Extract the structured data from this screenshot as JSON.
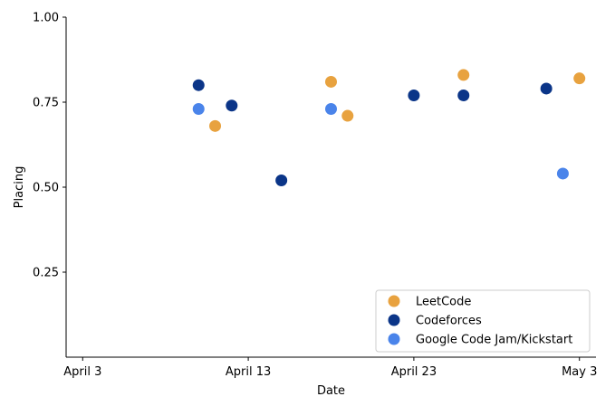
{
  "chart_data": {
    "type": "scatter",
    "xlabel": "Date",
    "ylabel": "Placing",
    "x_type": "date",
    "xlim": [
      "2023-04-02",
      "2023-05-04"
    ],
    "ylim": [
      0.0,
      1.0
    ],
    "x_ticks": [
      {
        "date": "2023-04-03",
        "label": "April 3"
      },
      {
        "date": "2023-04-13",
        "label": "April 13"
      },
      {
        "date": "2023-04-23",
        "label": "April 23"
      },
      {
        "date": "2023-05-03",
        "label": "May 3"
      }
    ],
    "y_ticks": [
      {
        "value": 0.25,
        "label": "0.25"
      },
      {
        "value": 0.5,
        "label": "0.50"
      },
      {
        "value": 0.75,
        "label": "0.75"
      },
      {
        "value": 1.0,
        "label": "1.00"
      }
    ],
    "grid": false,
    "legend_position": "lower-right",
    "series": [
      {
        "name": "LeetCode",
        "color": "#E8A23F",
        "points": [
          {
            "x": "2023-04-11",
            "y": 0.68
          },
          {
            "x": "2023-04-18",
            "y": 0.81
          },
          {
            "x": "2023-04-19",
            "y": 0.71
          },
          {
            "x": "2023-04-26",
            "y": 0.83
          },
          {
            "x": "2023-05-03",
            "y": 0.82
          }
        ]
      },
      {
        "name": "Codeforces",
        "color": "#0B3588",
        "points": [
          {
            "x": "2023-04-10",
            "y": 0.8
          },
          {
            "x": "2023-04-12",
            "y": 0.74
          },
          {
            "x": "2023-04-15",
            "y": 0.52
          },
          {
            "x": "2023-04-23",
            "y": 0.77
          },
          {
            "x": "2023-04-26",
            "y": 0.77
          },
          {
            "x": "2023-05-01",
            "y": 0.79
          }
        ]
      },
      {
        "name": "Google Code Jam/Kickstart",
        "color": "#4A84EA",
        "points": [
          {
            "x": "2023-04-10",
            "y": 0.73
          },
          {
            "x": "2023-04-18",
            "y": 0.73
          },
          {
            "x": "2023-05-02",
            "y": 0.54
          }
        ]
      }
    ]
  }
}
